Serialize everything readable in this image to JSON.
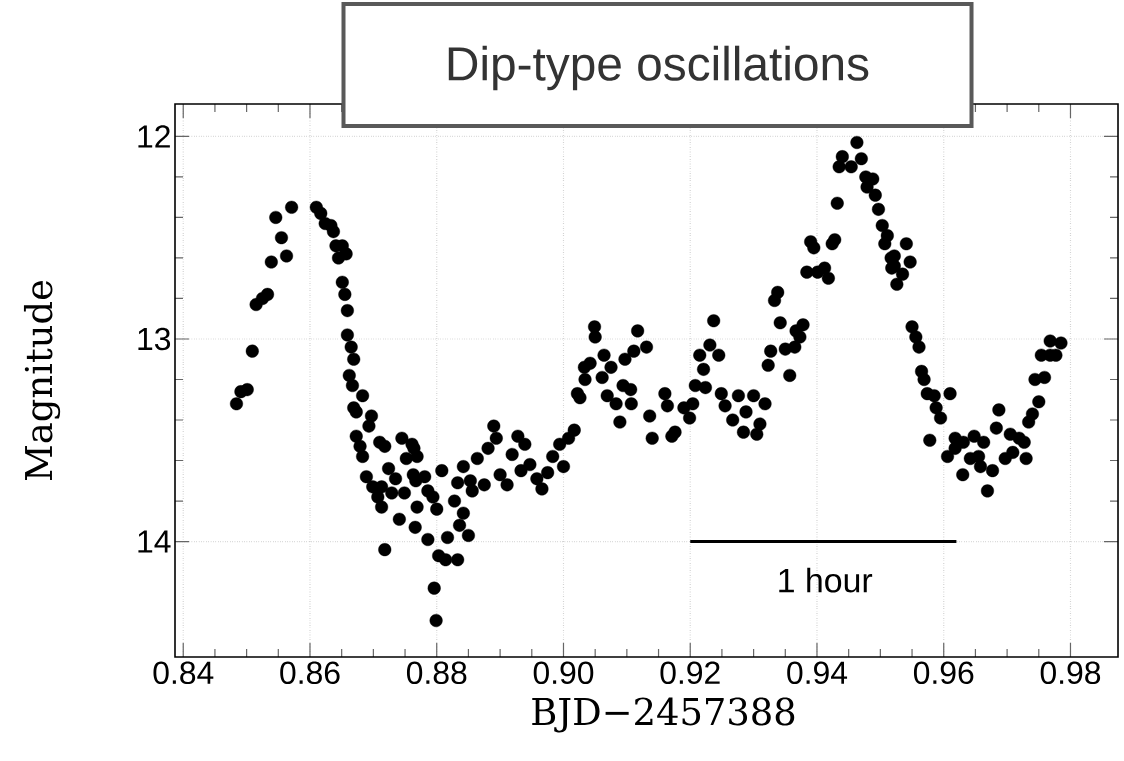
{
  "chart_data": {
    "type": "scatter",
    "title": "Dip-type oscillations",
    "xlabel": "BJD−2457388",
    "ylabel": "Magnitude",
    "xlim": [
      0.8387,
      0.9875
    ],
    "ylim": [
      14.57,
      11.84
    ],
    "xticks": [
      0.84,
      0.86,
      0.88,
      {
        "value": 0.9,
        "label": "0.90"
      },
      0.92,
      0.94,
      0.96,
      0.98
    ],
    "yticks": [
      12,
      13,
      14
    ],
    "grid": true,
    "annotations": [
      "1 hour"
    ],
    "series": [
      {
        "color": "#000000",
        "marker": "circle",
        "x": [
          0.8484,
          0.8491,
          0.8501,
          0.8509,
          0.8515,
          0.8525,
          0.8533,
          0.8539,
          0.8546,
          0.8555,
          0.8563,
          0.8571,
          0.861,
          0.8617,
          0.8624,
          0.8633,
          0.8637,
          0.8641,
          0.8651,
          0.8657,
          0.8645,
          0.8651,
          0.8655,
          0.8659,
          0.8659,
          0.8665,
          0.8669,
          0.8662,
          0.8667,
          0.8683,
          0.8669,
          0.8673,
          0.8697,
          0.8693,
          0.8673,
          0.8679,
          0.8683,
          0.871,
          0.8718,
          0.8745,
          0.8761,
          0.8689,
          0.8699,
          0.8707,
          0.8713,
          0.8724,
          0.8729,
          0.8713,
          0.8735,
          0.8749,
          0.8752,
          0.8741,
          0.8766,
          0.8763,
          0.8718,
          0.8769,
          0.8764,
          0.8769,
          0.8781,
          0.8767,
          0.8786,
          0.8794,
          0.88,
          0.8808,
          0.8828,
          0.8842,
          0.8836,
          0.8817,
          0.8786,
          0.8803,
          0.8814,
          0.8833,
          0.885,
          0.8796,
          0.8799,
          0.8833,
          0.8842,
          0.8853,
          0.8856,
          0.8875,
          0.8864,
          0.8881,
          0.889,
          0.8894,
          0.89,
          0.8911,
          0.8919,
          0.8928,
          0.8939,
          0.8933,
          0.8947,
          0.8958,
          0.8966,
          0.8975,
          0.8983,
          0.9,
          0.8994,
          0.9008,
          0.9017,
          0.9022,
          0.9026,
          0.9033,
          0.9042,
          0.9034,
          0.9049,
          0.905,
          0.9064,
          0.9061,
          0.9075,
          0.9069,
          0.9083,
          0.9089,
          0.9094,
          0.9106,
          0.9107,
          0.9097,
          0.9111,
          0.9117,
          0.9131,
          0.9136,
          0.914,
          0.916,
          0.9164,
          0.9171,
          0.9176,
          0.919,
          0.9199,
          0.9204,
          0.9208,
          0.9224,
          0.9221,
          0.9215,
          0.9231,
          0.9245,
          0.9237,
          0.9249,
          0.9255,
          0.9267,
          0.9276,
          0.9284,
          0.9288,
          0.93,
          0.9305,
          0.931,
          0.9318,
          0.9323,
          0.9327,
          0.9333,
          0.9338,
          0.9342,
          0.935,
          0.9357,
          0.9365,
          0.9367,
          0.9373,
          0.9378,
          0.9384,
          0.939,
          0.9395,
          0.9401,
          0.9412,
          0.9418,
          0.9424,
          0.9428,
          0.9432,
          0.9435,
          0.944,
          0.9454,
          0.9463,
          0.947,
          0.9477,
          0.9488,
          0.9479,
          0.9492,
          0.9497,
          0.9503,
          0.9511,
          0.9507,
          0.9517,
          0.9522,
          0.9526,
          0.9541,
          0.9522,
          0.9547,
          0.9518,
          0.9535,
          0.955,
          0.9556,
          0.9561,
          0.9565,
          0.9569,
          0.9574,
          0.9585,
          0.9588,
          0.9595,
          0.961,
          0.9578,
          0.9606,
          0.9618,
          0.9618,
          0.9631,
          0.9648,
          0.9663,
          0.9642,
          0.9655,
          0.9658,
          0.963,
          0.9677,
          0.9669,
          0.9683,
          0.9687,
          0.9697,
          0.9709,
          0.9705,
          0.9719,
          0.9727,
          0.973,
          0.9734,
          0.974,
          0.975,
          0.9744,
          0.9759,
          0.9754,
          0.9768,
          0.9777,
          0.9768,
          0.9785
        ],
        "values": [
          13.32,
          13.26,
          13.25,
          13.06,
          12.83,
          12.8,
          12.78,
          12.62,
          12.4,
          12.5,
          12.59,
          12.35,
          12.35,
          12.38,
          12.43,
          12.44,
          12.47,
          12.54,
          12.54,
          12.58,
          12.6,
          12.72,
          12.78,
          12.86,
          12.98,
          13.04,
          13.1,
          13.18,
          13.23,
          13.28,
          13.34,
          13.36,
          13.38,
          13.43,
          13.48,
          13.53,
          13.58,
          13.51,
          13.53,
          13.49,
          13.52,
          13.68,
          13.73,
          13.78,
          13.73,
          13.64,
          13.76,
          13.83,
          13.69,
          13.76,
          13.59,
          13.89,
          13.93,
          13.67,
          14.04,
          13.83,
          13.54,
          13.58,
          13.68,
          13.7,
          13.75,
          13.78,
          13.84,
          13.65,
          13.8,
          13.86,
          13.92,
          13.98,
          13.99,
          14.07,
          14.09,
          14.09,
          13.97,
          14.23,
          14.39,
          13.71,
          13.63,
          13.7,
          13.75,
          13.72,
          13.59,
          13.54,
          13.43,
          13.49,
          13.67,
          13.72,
          13.57,
          13.48,
          13.52,
          13.65,
          13.62,
          13.69,
          13.74,
          13.66,
          13.58,
          13.63,
          13.52,
          13.49,
          13.45,
          13.27,
          13.29,
          13.14,
          13.12,
          13.2,
          12.94,
          12.99,
          13.08,
          13.19,
          13.14,
          13.28,
          13.32,
          13.41,
          13.23,
          13.25,
          13.32,
          13.1,
          13.06,
          12.96,
          13.04,
          13.38,
          13.49,
          13.27,
          13.33,
          13.48,
          13.46,
          13.34,
          13.39,
          13.32,
          13.23,
          13.24,
          13.15,
          13.08,
          13.03,
          13.08,
          12.91,
          13.27,
          13.33,
          13.4,
          13.28,
          13.46,
          13.36,
          13.28,
          13.47,
          13.42,
          13.32,
          13.13,
          13.06,
          12.81,
          12.77,
          12.92,
          13.05,
          13.18,
          13.04,
          12.96,
          12.99,
          12.93,
          12.67,
          12.52,
          12.55,
          12.67,
          12.65,
          12.7,
          12.53,
          12.51,
          12.33,
          12.15,
          12.1,
          12.15,
          12.03,
          12.11,
          12.2,
          12.21,
          12.25,
          12.29,
          12.36,
          12.44,
          12.49,
          12.53,
          12.6,
          12.64,
          12.73,
          12.53,
          12.59,
          12.62,
          12.65,
          12.68,
          12.94,
          12.99,
          13.04,
          13.16,
          13.2,
          13.27,
          13.28,
          13.34,
          13.39,
          13.27,
          13.5,
          13.58,
          13.49,
          13.54,
          13.51,
          13.48,
          13.51,
          13.59,
          13.58,
          13.63,
          13.67,
          13.65,
          13.75,
          13.44,
          13.35,
          13.59,
          13.56,
          13.47,
          13.49,
          13.51,
          13.59,
          13.41,
          13.37,
          13.31,
          13.2,
          13.19,
          13.08,
          13.08,
          13.08,
          13.01,
          13.02
        ]
      },
      {
        "type": "line",
        "color": "#000000",
        "marker": "none",
        "x": [
          0.92,
          0.962
        ],
        "values": [
          14,
          14
        ]
      }
    ]
  }
}
